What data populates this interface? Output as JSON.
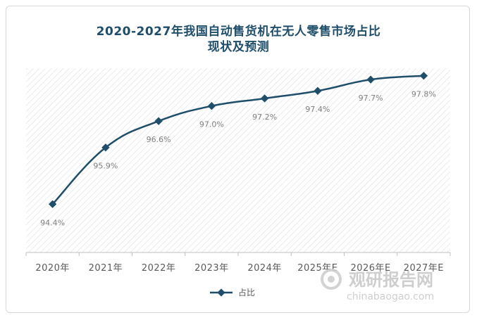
{
  "title_line1": "2020-2027年我国自动售货机在无人零售市场占比",
  "title_line2": "现状及预测",
  "legend_label": "占比",
  "watermark": {
    "brand": "观研报告网",
    "url": "chinabaogao.com"
  },
  "colors": {
    "line": "#1f4e6b",
    "title": "#1f4e6b",
    "tick_text": "#595959",
    "data_label": "#7f7f7f"
  },
  "chart_data": {
    "type": "line",
    "title": "2020-2027年我国自动售货机在无人零售市场占比现状及预测",
    "categories": [
      "2020年",
      "2021年",
      "2022年",
      "2023年",
      "2024年",
      "2025年E",
      "2026年E",
      "2027年E"
    ],
    "series": [
      {
        "name": "占比",
        "values": [
          94.4,
          95.9,
          96.6,
          97.0,
          97.2,
          97.4,
          97.7,
          97.8
        ],
        "labels": [
          "94.4%",
          "95.9%",
          "96.6%",
          "97.0%",
          "97.2%",
          "97.4%",
          "97.7%",
          "97.8%"
        ]
      }
    ],
    "xlabel": "",
    "ylabel": "",
    "grid": false,
    "legend_position": "bottom"
  }
}
